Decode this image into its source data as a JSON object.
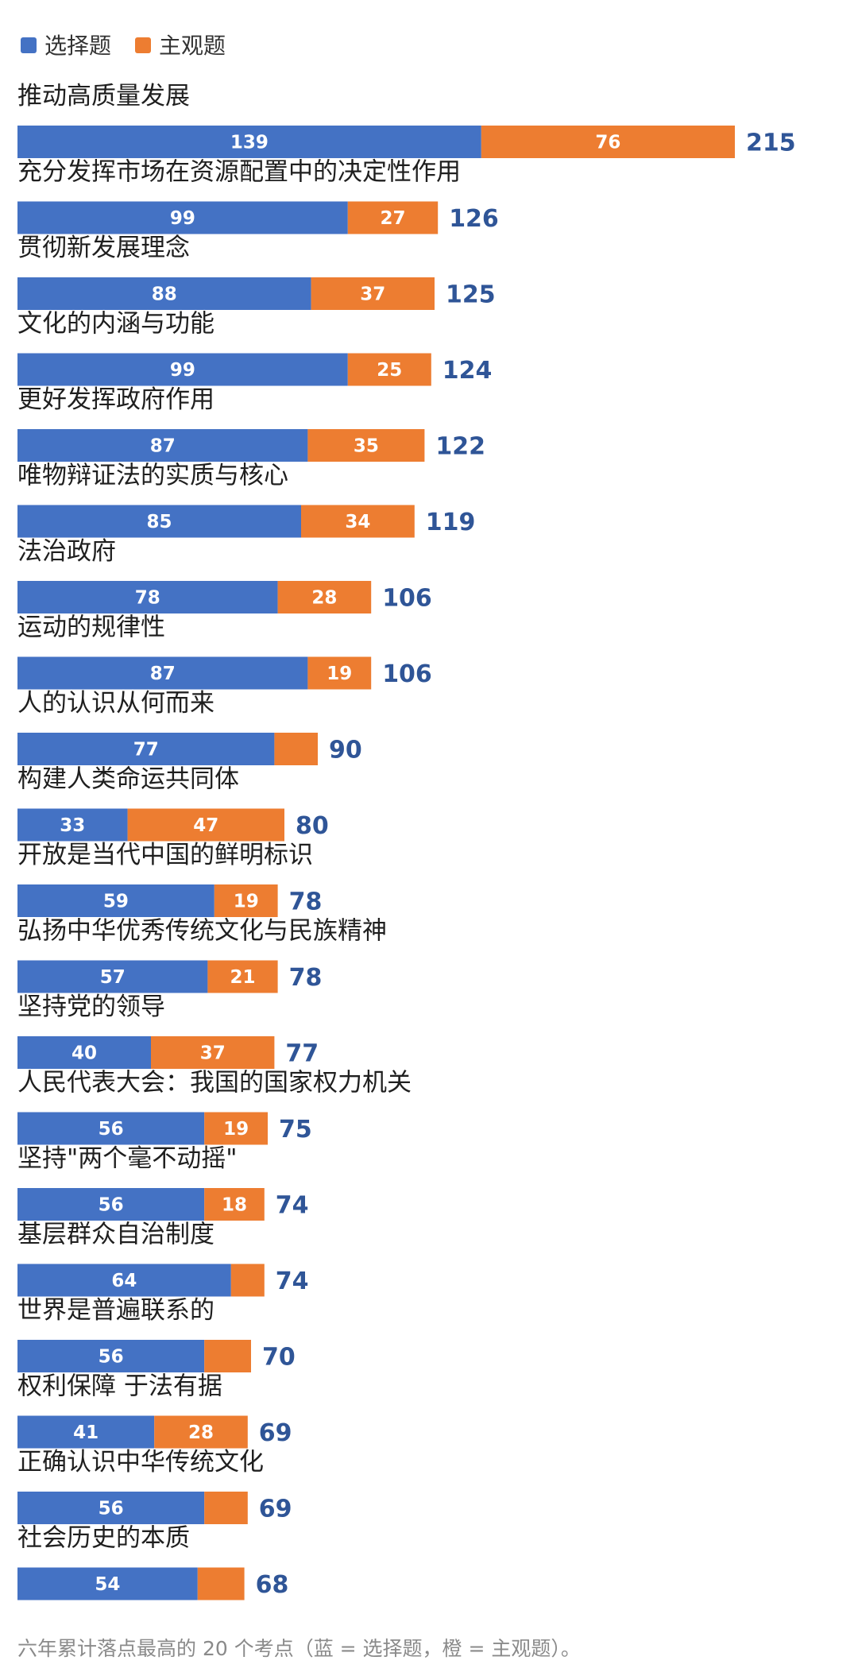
{
  "chart_data": {
    "type": "bar",
    "orientation": "horizontal",
    "stacked": true,
    "legend": "top-left",
    "grid": false,
    "series": [
      {
        "name": "选择题",
        "color": "#4472C4",
        "values": [
          139,
          99,
          88,
          99,
          87,
          85,
          78,
          87,
          77,
          33,
          59,
          57,
          40,
          56,
          56,
          64,
          56,
          41,
          56,
          54
        ]
      },
      {
        "name": "主观题",
        "color": "#ED7D31",
        "values": [
          76,
          27,
          37,
          25,
          35,
          34,
          28,
          19,
          13,
          47,
          19,
          21,
          37,
          19,
          18,
          10,
          14,
          28,
          13,
          14
        ]
      }
    ],
    "categories": [
      "推动高质量发展",
      "充分发挥市场在资源配置中的决定性作用",
      "贯彻新发展理念",
      "文化的内涵与功能",
      "更好发挥政府作用",
      "唯物辩证法的实质与核心",
      "法治政府",
      "运动的规律性",
      "人的认识从何而来",
      "构建人类命运共同体",
      "开放是当代中国的鲜明标识",
      "弘扬中华优秀传统文化与民族精神",
      "坚持党的领导",
      "人民代表大会：我国的国家权力机关",
      "坚持\"两个毫不动摇\"",
      "基层群众自治制度",
      "世界是普遍联系的",
      "权利保障 于法有据",
      "正确认识中华传统文化",
      "社会历史的本质"
    ],
    "totals": [
      215,
      126,
      125,
      124,
      122,
      119,
      106,
      106,
      90,
      80,
      78,
      78,
      77,
      75,
      74,
      74,
      70,
      69,
      69,
      68
    ],
    "hidden_segment_labels": [
      {
        "category_index": 8,
        "series_index": 1
      },
      {
        "category_index": 15,
        "series_index": 1
      },
      {
        "category_index": 16,
        "series_index": 1
      },
      {
        "category_index": 18,
        "series_index": 1
      },
      {
        "category_index": 19,
        "series_index": 1
      }
    ],
    "total_label_color": "#2F5597",
    "caption": "六年累计落点最高的 20 个考点（蓝 = 选择题，橙 = 主观题）。"
  }
}
